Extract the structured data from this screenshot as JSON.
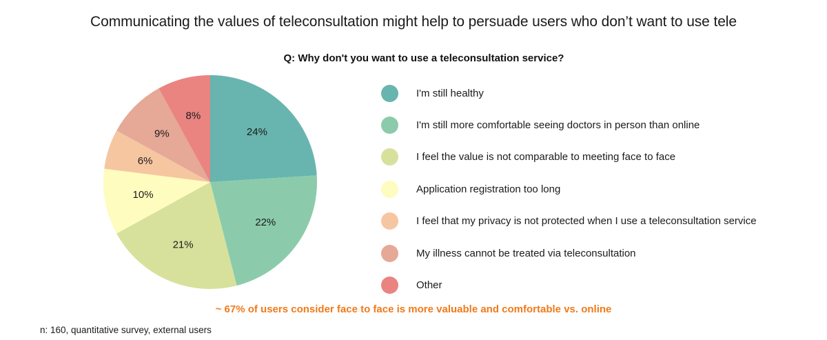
{
  "title": "Communicating the values of teleconsultation might help to persuade users who don’t want to use tele",
  "question": "Q: Why don't you want to use a teleconsultation service?",
  "footnote": "~ 67% of users consider face to face is more valuable and comfortable vs. online",
  "sample_note": "n: 160, quantitative survey, external  users",
  "chart_data": {
    "type": "pie",
    "title": "Q: Why don't you want to use a teleconsultation service?",
    "legend_position": "right",
    "slices": [
      {
        "label": "I'm still healthy",
        "value": 24,
        "value_label": "24%",
        "color": "#67b5ae"
      },
      {
        "label": "I'm still more comfortable seeing doctors in person than online",
        "value": 22,
        "value_label": "22%",
        "color": "#8bcbab"
      },
      {
        "label": "I feel the value is not comparable to meeting face to face",
        "value": 21,
        "value_label": "21%",
        "color": "#d7e19c"
      },
      {
        "label": "Application registration too long",
        "value": 10,
        "value_label": "10%",
        "color": "#fefcbe"
      },
      {
        "label": "I feel that my privacy is not protected when I use a teleconsultation service",
        "value": 6,
        "value_label": "6%",
        "color": "#f6c6a1"
      },
      {
        "label": "My illness cannot be treated via teleconsultation",
        "value": 9,
        "value_label": "9%",
        "color": "#e6a897"
      },
      {
        "label": "Other",
        "value": 8,
        "value_label": "8%",
        "color": "#ea8481"
      }
    ]
  }
}
